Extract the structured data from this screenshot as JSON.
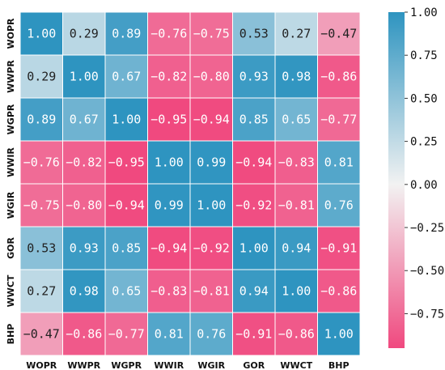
{
  "chart_data": {
    "type": "heatmap",
    "title": "",
    "xlabel": "",
    "ylabel": "",
    "labels": [
      "WOPR",
      "WWPR",
      "WGPR",
      "WWIR",
      "WGIR",
      "GOR",
      "WWCT",
      "BHP"
    ],
    "values": [
      [
        1.0,
        0.29,
        0.89,
        -0.76,
        -0.75,
        0.53,
        0.27,
        -0.47
      ],
      [
        0.29,
        1.0,
        0.67,
        -0.82,
        -0.8,
        0.93,
        0.98,
        -0.86
      ],
      [
        0.89,
        0.67,
        1.0,
        -0.95,
        -0.94,
        0.85,
        0.65,
        -0.77
      ],
      [
        -0.76,
        -0.82,
        -0.95,
        1.0,
        0.99,
        -0.94,
        -0.83,
        0.81
      ],
      [
        -0.75,
        -0.8,
        -0.94,
        0.99,
        1.0,
        -0.92,
        -0.81,
        0.76
      ],
      [
        0.53,
        0.93,
        0.85,
        -0.94,
        -0.92,
        1.0,
        0.94,
        -0.91
      ],
      [
        0.27,
        0.98,
        0.65,
        -0.83,
        -0.81,
        0.94,
        1.0,
        -0.86
      ],
      [
        -0.47,
        -0.86,
        -0.77,
        0.81,
        0.76,
        -0.91,
        -0.86,
        1.0
      ]
    ],
    "colorbar": {
      "min": -0.95,
      "max": 1.0,
      "ticks": [
        1.0,
        0.75,
        0.5,
        0.25,
        0.0,
        -0.25,
        -0.5,
        -0.75
      ],
      "tick_labels": [
        "1.00",
        "0.75",
        "0.50",
        "0.25",
        "0.00",
        "−0.25",
        "−0.50",
        "−0.75"
      ]
    },
    "colormap": {
      "negative": "#f0497f",
      "center": "#f2f2f2",
      "positive": "#2e94c0"
    },
    "cell_border_color": "#ffffff",
    "grid": false
  }
}
